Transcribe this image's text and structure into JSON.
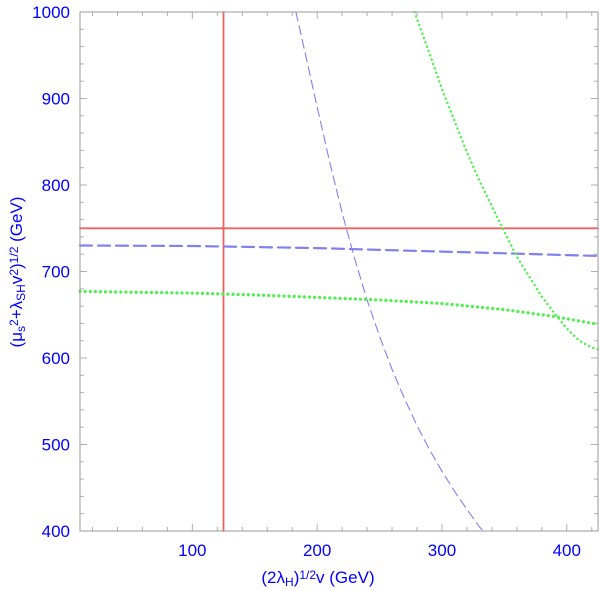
{
  "chart_data": {
    "type": "line",
    "title": "",
    "xlabel_parts": [
      "(2λ",
      "H",
      ")",
      "1/2",
      "v (GeV)"
    ],
    "ylabel_parts": [
      "(μ",
      "s",
      "2",
      "+λ",
      "SH",
      "v",
      "2",
      ")",
      "1/2",
      " (GeV)"
    ],
    "xlim": [
      10,
      425
    ],
    "ylim": [
      400,
      1000
    ],
    "x_ticks": [
      100,
      200,
      300,
      400
    ],
    "y_ticks": [
      400,
      500,
      600,
      700,
      800,
      900,
      1000
    ],
    "x_tick_labels": [
      "100",
      "200",
      "300",
      "400"
    ],
    "y_tick_labels": [
      "400",
      "500",
      "600",
      "700",
      "800",
      "900",
      "1000"
    ],
    "grid": false,
    "colors": {
      "axis_text": "#0000ff",
      "frame": "#999999",
      "red": "#f06060",
      "blue": "#8080f0",
      "green": "#50f050"
    },
    "series": [
      {
        "style": "solid-red",
        "points": [
          [
            125,
            400
          ],
          [
            125,
            1000
          ]
        ]
      },
      {
        "style": "solid-red",
        "points": [
          [
            10,
            750
          ],
          [
            425,
            750
          ]
        ]
      },
      {
        "style": "dashed-blue-thick",
        "points": [
          [
            10,
            730
          ],
          [
            100,
            729.5
          ],
          [
            200,
            727
          ],
          [
            250,
            725
          ],
          [
            300,
            723
          ],
          [
            350,
            721
          ],
          [
            400,
            719
          ],
          [
            425,
            718
          ]
        ]
      },
      {
        "style": "dashed-blue-thin",
        "points": [
          [
            183,
            1000
          ],
          [
            190,
            955
          ],
          [
            200,
            890
          ],
          [
            210,
            827
          ],
          [
            220,
            768
          ],
          [
            230,
            715
          ],
          [
            240,
            667
          ],
          [
            250,
            625
          ],
          [
            260,
            587
          ],
          [
            270,
            553
          ],
          [
            280,
            522
          ],
          [
            290,
            494
          ],
          [
            300,
            469
          ],
          [
            310,
            446
          ],
          [
            320,
            425
          ],
          [
            330,
            405
          ],
          [
            333,
            400
          ]
        ]
      },
      {
        "style": "dotted-green-thick",
        "points": [
          [
            10,
            677
          ],
          [
            100,
            675
          ],
          [
            150,
            673
          ],
          [
            200,
            670
          ],
          [
            250,
            667
          ],
          [
            300,
            663
          ],
          [
            350,
            656
          ],
          [
            390,
            648
          ],
          [
            425,
            639
          ]
        ]
      },
      {
        "style": "dotted-green-thin",
        "points": [
          [
            278,
            1000
          ],
          [
            290,
            952
          ],
          [
            300,
            911
          ],
          [
            310,
            874
          ],
          [
            320,
            838
          ],
          [
            330,
            805
          ],
          [
            340,
            775
          ],
          [
            350,
            746
          ],
          [
            360,
            717
          ],
          [
            370,
            694
          ],
          [
            380,
            671
          ],
          [
            390,
            652
          ],
          [
            400,
            634
          ],
          [
            410,
            620
          ],
          [
            420,
            612
          ],
          [
            425,
            610
          ]
        ]
      }
    ]
  }
}
